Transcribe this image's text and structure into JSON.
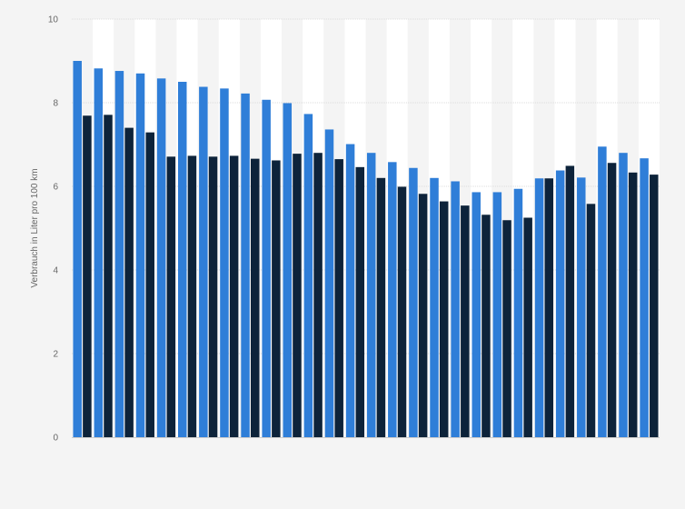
{
  "chart_data": {
    "type": "bar",
    "title": "",
    "xlabel": "",
    "ylabel": "Verbrauch in Liter pro 100 km",
    "ylim": [
      0,
      10
    ],
    "yticks": [
      0,
      2,
      4,
      6,
      8,
      10
    ],
    "grid": true,
    "legend": "none",
    "colors": {
      "series1": "#2f7ed8",
      "series2": "#0d233a",
      "band": "#ffffff",
      "background": "#f4f4f4",
      "grid": "#dddddd"
    },
    "categories": [
      "1",
      "2",
      "3",
      "4",
      "5",
      "6",
      "7",
      "8",
      "9",
      "10",
      "11",
      "12",
      "13",
      "14",
      "15",
      "16",
      "17",
      "18",
      "19",
      "20",
      "21",
      "22",
      "23",
      "24",
      "25",
      "26",
      "27",
      "28"
    ],
    "show_category_labels": false,
    "series": [
      {
        "values": [
          9.0,
          8.82,
          8.76,
          8.7,
          8.58,
          8.5,
          8.38,
          8.34,
          8.22,
          8.07,
          7.99,
          7.73,
          7.36,
          7.01,
          6.8,
          6.58,
          6.44,
          6.2,
          6.12,
          5.86,
          5.86,
          5.94,
          6.19,
          6.38,
          6.21,
          6.95,
          6.8,
          6.67
        ]
      },
      {
        "values": [
          7.69,
          7.71,
          7.4,
          7.29,
          6.71,
          6.73,
          6.71,
          6.73,
          6.66,
          6.62,
          6.78,
          6.8,
          6.65,
          6.46,
          6.2,
          5.99,
          5.82,
          5.64,
          5.54,
          5.32,
          5.19,
          5.25,
          6.19,
          6.49,
          5.58,
          6.56,
          6.33,
          6.28
        ]
      }
    ]
  }
}
